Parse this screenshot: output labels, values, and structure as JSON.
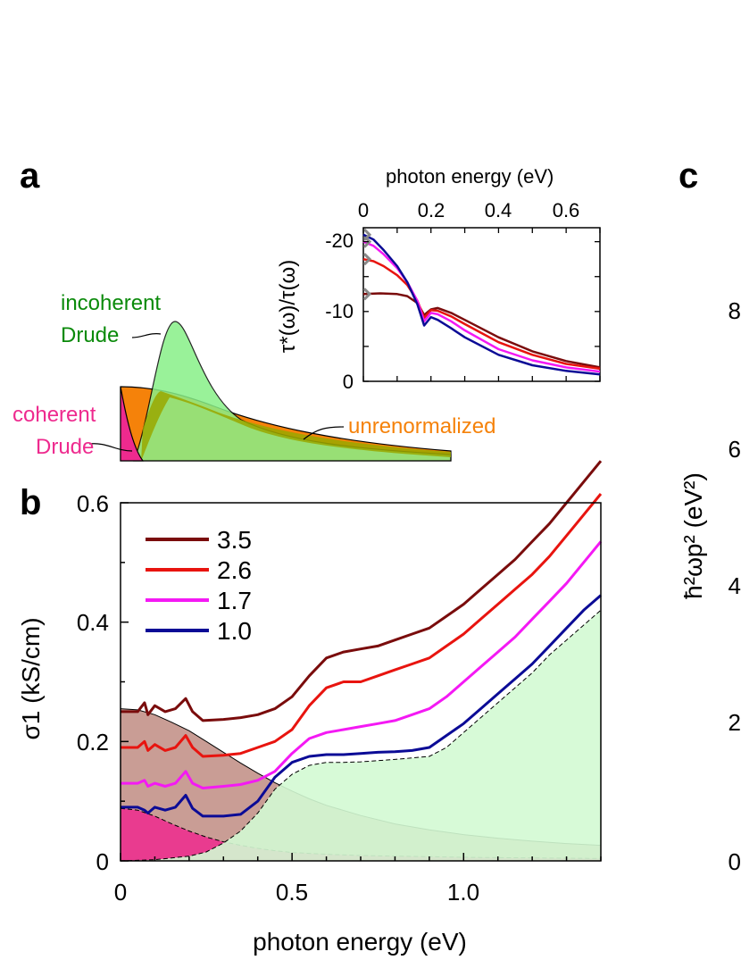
{
  "panels": {
    "a": "a",
    "b": "b",
    "c": "c"
  },
  "colors": {
    "s35": "#7a0c0c",
    "s26": "#e8140f",
    "s17": "#f419f4",
    "s10": "#0b0b96",
    "coherent": "#ee2a8e",
    "incoherent": "#88f088",
    "unrenormalized": "#f5820a",
    "olive": "#99a800",
    "green_text": "#0a8a0a",
    "orange_text": "#f5820a",
    "pink_text": "#ee2a8e"
  },
  "panel_a": {
    "incoherent_label_1": "incoherent",
    "incoherent_label_2": "Drude",
    "coherent_label_1": "coherent",
    "coherent_label_2": "Drude",
    "unrenormalized_label": "unrenormalized"
  },
  "inset": {
    "xlabel": "photon energy (eV)",
    "ylabel": "τ*(ω)/τ(ω)",
    "xticks": [
      "0",
      "0.2",
      "0.4",
      "0.6"
    ],
    "yticks": [
      "-20",
      "-10",
      "0"
    ]
  },
  "panel_c": {
    "ylabel": "ħ²ωp² (eV²)",
    "yticks": [
      "8",
      "6",
      "4",
      "2",
      "0"
    ]
  },
  "chart_data": [
    {
      "id": "panel-b",
      "type": "line",
      "title": "",
      "xlabel": "photon energy (eV)",
      "ylabel": "σ1 (kS/cm)",
      "xlim": [
        0,
        1.4
      ],
      "ylim": [
        0,
        0.6
      ],
      "xticks": [
        "0",
        "0.5",
        "1.0"
      ],
      "yticks": [
        "0",
        "0.2",
        "0.4",
        "0.6"
      ],
      "legend": [
        "3.5",
        "2.6",
        "1.7",
        "1.0"
      ],
      "series": [
        {
          "name": "3.5",
          "color": "#7a0c0c",
          "x": [
            0,
            0.05,
            0.07,
            0.08,
            0.1,
            0.13,
            0.16,
            0.19,
            0.21,
            0.24,
            0.3,
            0.35,
            0.4,
            0.45,
            0.5,
            0.55,
            0.6,
            0.65,
            0.7,
            0.75,
            0.8,
            0.85,
            0.9,
            0.95,
            1.0,
            1.05,
            1.1,
            1.15,
            1.2,
            1.25,
            1.3,
            1.35,
            1.4
          ],
          "y": [
            0.25,
            0.25,
            0.265,
            0.245,
            0.26,
            0.25,
            0.255,
            0.272,
            0.25,
            0.235,
            0.237,
            0.24,
            0.245,
            0.255,
            0.275,
            0.31,
            0.34,
            0.35,
            0.355,
            0.36,
            0.37,
            0.38,
            0.39,
            0.41,
            0.43,
            0.455,
            0.48,
            0.505,
            0.535,
            0.565,
            0.6,
            0.635,
            0.67
          ]
        },
        {
          "name": "2.6",
          "color": "#e8140f",
          "x": [
            0,
            0.05,
            0.07,
            0.08,
            0.1,
            0.13,
            0.16,
            0.19,
            0.21,
            0.24,
            0.3,
            0.35,
            0.4,
            0.45,
            0.5,
            0.55,
            0.6,
            0.65,
            0.7,
            0.75,
            0.8,
            0.85,
            0.9,
            0.95,
            1.0,
            1.05,
            1.1,
            1.15,
            1.2,
            1.25,
            1.3,
            1.35,
            1.4
          ],
          "y": [
            0.19,
            0.19,
            0.2,
            0.185,
            0.195,
            0.185,
            0.19,
            0.21,
            0.19,
            0.175,
            0.177,
            0.18,
            0.19,
            0.2,
            0.22,
            0.26,
            0.29,
            0.3,
            0.3,
            0.31,
            0.32,
            0.33,
            0.34,
            0.36,
            0.38,
            0.405,
            0.43,
            0.455,
            0.48,
            0.51,
            0.545,
            0.58,
            0.615
          ]
        },
        {
          "name": "1.7",
          "color": "#f419f4",
          "x": [
            0,
            0.05,
            0.07,
            0.08,
            0.1,
            0.13,
            0.16,
            0.19,
            0.21,
            0.24,
            0.3,
            0.35,
            0.4,
            0.45,
            0.5,
            0.55,
            0.6,
            0.65,
            0.7,
            0.75,
            0.8,
            0.85,
            0.9,
            0.95,
            1.0,
            1.05,
            1.1,
            1.15,
            1.2,
            1.25,
            1.3,
            1.35,
            1.4
          ],
          "y": [
            0.13,
            0.13,
            0.135,
            0.125,
            0.13,
            0.125,
            0.13,
            0.15,
            0.13,
            0.122,
            0.125,
            0.128,
            0.135,
            0.15,
            0.18,
            0.205,
            0.215,
            0.22,
            0.225,
            0.23,
            0.235,
            0.245,
            0.255,
            0.275,
            0.3,
            0.325,
            0.35,
            0.375,
            0.405,
            0.435,
            0.465,
            0.5,
            0.535
          ]
        },
        {
          "name": "1.0",
          "color": "#0b0b96",
          "x": [
            0,
            0.05,
            0.07,
            0.08,
            0.1,
            0.13,
            0.16,
            0.19,
            0.21,
            0.24,
            0.3,
            0.35,
            0.4,
            0.45,
            0.5,
            0.55,
            0.6,
            0.65,
            0.7,
            0.75,
            0.8,
            0.85,
            0.9,
            0.95,
            1.0,
            1.05,
            1.1,
            1.15,
            1.2,
            1.25,
            1.3,
            1.35,
            1.4
          ],
          "y": [
            0.09,
            0.09,
            0.085,
            0.08,
            0.09,
            0.085,
            0.09,
            0.11,
            0.088,
            0.075,
            0.075,
            0.078,
            0.1,
            0.14,
            0.165,
            0.175,
            0.178,
            0.178,
            0.18,
            0.182,
            0.183,
            0.185,
            0.19,
            0.21,
            0.23,
            0.255,
            0.28,
            0.305,
            0.33,
            0.36,
            0.39,
            0.42,
            0.445
          ]
        }
      ],
      "shaded": [
        {
          "name": "unrenormalized",
          "color": "#c08c82",
          "x": [
            0,
            0.05,
            0.1,
            0.15,
            0.2,
            0.25,
            0.3,
            0.35,
            0.4,
            0.45,
            0.5,
            0.55,
            0.6,
            0.7,
            0.8,
            0.9,
            1.0,
            1.1,
            1.2,
            1.3,
            1.4
          ],
          "y": [
            0.255,
            0.253,
            0.245,
            0.232,
            0.218,
            0.2,
            0.182,
            0.164,
            0.147,
            0.131,
            0.117,
            0.104,
            0.093,
            0.076,
            0.062,
            0.052,
            0.044,
            0.038,
            0.033,
            0.029,
            0.026
          ]
        },
        {
          "name": "coherent",
          "color": "#ee2a8e",
          "x": [
            0,
            0.05,
            0.1,
            0.15,
            0.2,
            0.25,
            0.3,
            0.35,
            0.4,
            0.45,
            0.5,
            0.6,
            0.7,
            0.8,
            0.9,
            1.0,
            1.2,
            1.4
          ],
          "y": [
            0.088,
            0.085,
            0.075,
            0.062,
            0.05,
            0.04,
            0.032,
            0.026,
            0.021,
            0.017,
            0.014,
            0.011,
            0.009,
            0.008,
            0.007,
            0.006,
            0.005,
            0.004
          ]
        },
        {
          "name": "incoherent",
          "color": "#d3fad3",
          "x": [
            0,
            0.1,
            0.2,
            0.25,
            0.3,
            0.35,
            0.4,
            0.45,
            0.5,
            0.55,
            0.6,
            0.65,
            0.7,
            0.8,
            0.9,
            0.95,
            1.0,
            1.05,
            1.1,
            1.15,
            1.2,
            1.25,
            1.3,
            1.35,
            1.4
          ],
          "y": [
            0,
            0.002,
            0.008,
            0.015,
            0.03,
            0.05,
            0.08,
            0.12,
            0.145,
            0.16,
            0.165,
            0.165,
            0.166,
            0.17,
            0.175,
            0.19,
            0.215,
            0.24,
            0.265,
            0.29,
            0.315,
            0.345,
            0.37,
            0.395,
            0.42
          ]
        }
      ]
    },
    {
      "id": "panel-a-inset",
      "type": "line",
      "xlabel": "photon energy (eV)",
      "ylabel": "τ*(ω)/τ(ω)",
      "xlim": [
        0,
        0.7
      ],
      "ylim": [
        0,
        -22
      ],
      "series": [
        {
          "name": "3.5",
          "color": "#7a0c0c",
          "x": [
            0,
            0.05,
            0.1,
            0.13,
            0.16,
            0.18,
            0.2,
            0.22,
            0.26,
            0.3,
            0.4,
            0.5,
            0.6,
            0.7
          ],
          "y": [
            -12.5,
            -12.6,
            -12.5,
            -12.2,
            -11.2,
            -9.5,
            -10.3,
            -10.5,
            -9.8,
            -8.8,
            -6.3,
            -4.3,
            -2.9,
            -2.0
          ]
        },
        {
          "name": "2.6",
          "color": "#e8140f",
          "x": [
            0,
            0.03,
            0.06,
            0.1,
            0.13,
            0.16,
            0.18,
            0.2,
            0.22,
            0.26,
            0.3,
            0.4,
            0.5,
            0.6,
            0.7
          ],
          "y": [
            -17.5,
            -17.2,
            -16.5,
            -15.2,
            -13.8,
            -11.5,
            -9.1,
            -10.2,
            -10.1,
            -9.3,
            -8.2,
            -5.6,
            -3.8,
            -2.5,
            -1.8
          ]
        },
        {
          "name": "1.7",
          "color": "#f419f4",
          "x": [
            0,
            0.03,
            0.06,
            0.1,
            0.13,
            0.16,
            0.18,
            0.2,
            0.22,
            0.26,
            0.3,
            0.4,
            0.5,
            0.6,
            0.7
          ],
          "y": [
            -20.0,
            -19.4,
            -18.2,
            -16.2,
            -14.2,
            -11.5,
            -8.6,
            -9.8,
            -9.6,
            -8.6,
            -7.3,
            -4.6,
            -3.0,
            -2.0,
            -1.4
          ]
        },
        {
          "name": "1.0",
          "color": "#0b0b96",
          "x": [
            0,
            0.03,
            0.06,
            0.1,
            0.13,
            0.16,
            0.18,
            0.2,
            0.22,
            0.26,
            0.3,
            0.4,
            0.5,
            0.6,
            0.7
          ],
          "y": [
            -21.0,
            -20.3,
            -18.8,
            -16.5,
            -14.2,
            -11.0,
            -8.0,
            -9.2,
            -8.8,
            -7.6,
            -6.3,
            -3.8,
            -2.3,
            -1.5,
            -1.0
          ]
        }
      ]
    }
  ]
}
